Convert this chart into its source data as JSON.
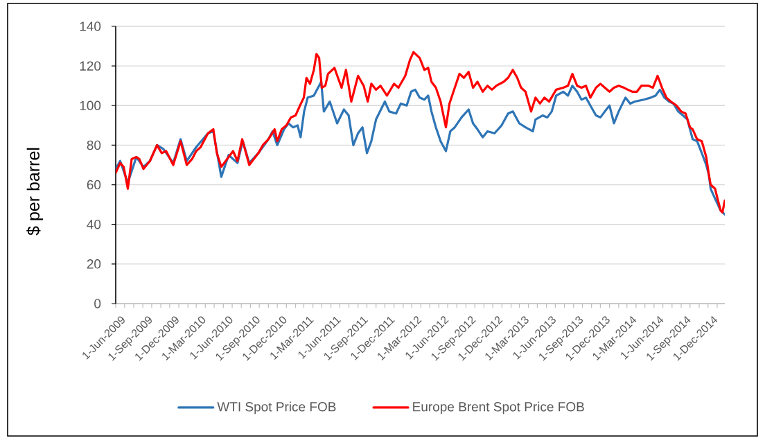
{
  "chart_data": {
    "type": "line",
    "ylabel": "$ per barrel",
    "xlim": [
      "2009-06-01",
      "2015-01-27"
    ],
    "ylim": [
      0,
      140
    ],
    "yticks": [
      0,
      20,
      40,
      60,
      80,
      100,
      120,
      140
    ],
    "xticks": [
      {
        "value": "2009-06-01",
        "label": "1-Jun-2009"
      },
      {
        "value": "2009-07-01",
        "label": null
      },
      {
        "value": "2009-08-01",
        "label": null
      },
      {
        "value": "2009-09-01",
        "label": "1-Sep-2009"
      },
      {
        "value": "2009-10-01",
        "label": null
      },
      {
        "value": "2009-11-01",
        "label": null
      },
      {
        "value": "2009-12-01",
        "label": "1-Dec-2009"
      },
      {
        "value": "2010-01-01",
        "label": null
      },
      {
        "value": "2010-02-01",
        "label": null
      },
      {
        "value": "2010-03-01",
        "label": "1-Mar-2010"
      },
      {
        "value": "2010-04-01",
        "label": null
      },
      {
        "value": "2010-05-01",
        "label": null
      },
      {
        "value": "2010-06-01",
        "label": "1-Jun-2010"
      },
      {
        "value": "2010-07-01",
        "label": null
      },
      {
        "value": "2010-08-01",
        "label": null
      },
      {
        "value": "2010-09-01",
        "label": "1-Sep-2010"
      },
      {
        "value": "2010-10-01",
        "label": null
      },
      {
        "value": "2010-11-01",
        "label": null
      },
      {
        "value": "2010-12-01",
        "label": "1-Dec-2010"
      },
      {
        "value": "2011-01-01",
        "label": null
      },
      {
        "value": "2011-02-01",
        "label": null
      },
      {
        "value": "2011-03-01",
        "label": "1-Mar-2011"
      },
      {
        "value": "2011-04-01",
        "label": null
      },
      {
        "value": "2011-05-01",
        "label": null
      },
      {
        "value": "2011-06-01",
        "label": "1-Jun-2011"
      },
      {
        "value": "2011-07-01",
        "label": null
      },
      {
        "value": "2011-08-01",
        "label": null
      },
      {
        "value": "2011-09-01",
        "label": "1-Sep-2011"
      },
      {
        "value": "2011-10-01",
        "label": null
      },
      {
        "value": "2011-11-01",
        "label": null
      },
      {
        "value": "2011-12-01",
        "label": "1-Dec-2011"
      },
      {
        "value": "2012-01-01",
        "label": null
      },
      {
        "value": "2012-02-01",
        "label": null
      },
      {
        "value": "2012-03-01",
        "label": "1-Mar-2012"
      },
      {
        "value": "2012-04-01",
        "label": null
      },
      {
        "value": "2012-05-01",
        "label": null
      },
      {
        "value": "2012-06-01",
        "label": "1-Jun-2012"
      },
      {
        "value": "2012-07-01",
        "label": null
      },
      {
        "value": "2012-08-01",
        "label": null
      },
      {
        "value": "2012-09-01",
        "label": "1-Sep-2012"
      },
      {
        "value": "2012-10-01",
        "label": null
      },
      {
        "value": "2012-11-01",
        "label": null
      },
      {
        "value": "2012-12-01",
        "label": "1-Dec-2012"
      },
      {
        "value": "2013-01-01",
        "label": null
      },
      {
        "value": "2013-02-01",
        "label": null
      },
      {
        "value": "2013-03-01",
        "label": "1-Mar-2013"
      },
      {
        "value": "2013-04-01",
        "label": null
      },
      {
        "value": "2013-05-01",
        "label": null
      },
      {
        "value": "2013-06-01",
        "label": "1-Jun-2013"
      },
      {
        "value": "2013-07-01",
        "label": null
      },
      {
        "value": "2013-08-01",
        "label": null
      },
      {
        "value": "2013-09-01",
        "label": "1-Sep-2013"
      },
      {
        "value": "2013-10-01",
        "label": null
      },
      {
        "value": "2013-11-01",
        "label": null
      },
      {
        "value": "2013-12-01",
        "label": "1-Dec-2013"
      },
      {
        "value": "2014-01-01",
        "label": null
      },
      {
        "value": "2014-02-01",
        "label": null
      },
      {
        "value": "2014-03-01",
        "label": "1-Mar-2014"
      },
      {
        "value": "2014-04-01",
        "label": null
      },
      {
        "value": "2014-05-01",
        "label": null
      },
      {
        "value": "2014-06-01",
        "label": "1-Jun-2014"
      },
      {
        "value": "2014-07-01",
        "label": null
      },
      {
        "value": "2014-08-01",
        "label": null
      },
      {
        "value": "2014-09-01",
        "label": "1-Sep-2014"
      },
      {
        "value": "2014-10-01",
        "label": null
      },
      {
        "value": "2014-11-01",
        "label": null
      },
      {
        "value": "2014-12-01",
        "label": "1-Dec-2014"
      },
      {
        "value": "2015-01-01",
        "label": null
      }
    ],
    "grid": "y",
    "legend": "bottom",
    "series": [
      {
        "name": "WTI Spot Price FOB",
        "color": "#2e75b6",
        "x": [
          "2009-06-01",
          "2009-06-16",
          "2009-07-12",
          "2009-08-10",
          "2009-09-03",
          "2009-09-25",
          "2009-10-19",
          "2009-11-10",
          "2009-12-13",
          "2010-01-07",
          "2010-01-28",
          "2010-03-01",
          "2010-04-10",
          "2010-04-28",
          "2010-05-25",
          "2010-06-19",
          "2010-07-19",
          "2010-08-06",
          "2010-08-28",
          "2010-09-28",
          "2010-11-01",
          "2010-11-15",
          "2010-12-01",
          "2010-12-24",
          "2011-01-08",
          "2011-01-24",
          "2011-02-08",
          "2011-02-18",
          "2011-03-02",
          "2011-03-14",
          "2011-04-04",
          "2011-04-29",
          "2011-05-08",
          "2011-05-28",
          "2011-06-22",
          "2011-07-15",
          "2011-07-31",
          "2011-08-16",
          "2011-09-01",
          "2011-09-16",
          "2011-10-01",
          "2011-10-16",
          "2011-11-01",
          "2011-12-01",
          "2011-12-16",
          "2012-01-08",
          "2012-01-24",
          "2012-02-13",
          "2012-02-28",
          "2012-03-13",
          "2012-03-28",
          "2012-04-13",
          "2012-04-26",
          "2012-05-07",
          "2012-05-22",
          "2012-06-07",
          "2012-06-25",
          "2012-07-10",
          "2012-07-25",
          "2012-08-17",
          "2012-09-10",
          "2012-09-25",
          "2012-10-10",
          "2012-10-28",
          "2012-11-13",
          "2012-12-07",
          "2012-12-31",
          "2013-01-22",
          "2013-02-07",
          "2013-03-01",
          "2013-03-22",
          "2013-04-16",
          "2013-04-25",
          "2013-05-19",
          "2013-06-04",
          "2013-06-19",
          "2013-07-04",
          "2013-07-28",
          "2013-08-13",
          "2013-08-28",
          "2013-09-13",
          "2013-09-28",
          "2013-10-13",
          "2013-10-28",
          "2013-11-16",
          "2013-12-01",
          "2013-12-16",
          "2014-01-01",
          "2014-01-16",
          "2014-02-01",
          "2014-02-24",
          "2014-03-12",
          "2014-03-28",
          "2014-04-27",
          "2014-05-21",
          "2014-06-06",
          "2014-06-21",
          "2014-07-06",
          "2014-07-22",
          "2014-08-06",
          "2014-08-22",
          "2014-09-07",
          "2014-09-22",
          "2014-10-10",
          "2014-10-25",
          "2014-11-10",
          "2014-11-25",
          "2014-12-04",
          "2014-12-10",
          "2014-12-25",
          "2015-01-13",
          "2015-01-27"
        ],
        "values": [
          68,
          72,
          61,
          74,
          69,
          72,
          80,
          78,
          71,
          83,
          72,
          79,
          86,
          87,
          64,
          75,
          71,
          82,
          71,
          76,
          83,
          87,
          80,
          88,
          91,
          89,
          90,
          84,
          97,
          104,
          105,
          112,
          97,
          102,
          91,
          98,
          95,
          80,
          86,
          89,
          76,
          82,
          93,
          102,
          97,
          96,
          101,
          100,
          107,
          108,
          104,
          103,
          105,
          97,
          89,
          82,
          77,
          87,
          89,
          94,
          98,
          91,
          88,
          84,
          87,
          86,
          90,
          96,
          97,
          91,
          89,
          87,
          93,
          95,
          94,
          97,
          105,
          107,
          105,
          110,
          107,
          103,
          104,
          100,
          95,
          94,
          97,
          100,
          91,
          97,
          104,
          101,
          102,
          103,
          104,
          105,
          108,
          104,
          102,
          101,
          97,
          95,
          93,
          83,
          82,
          76,
          70,
          65,
          58,
          53,
          47,
          45
        ]
      },
      {
        "name": "Europe Brent Spot Price FOB",
        "color": "#ff0000",
        "x": [
          "2009-06-01",
          "2009-06-16",
          "2009-06-28",
          "2009-07-12",
          "2009-07-25",
          "2009-08-10",
          "2009-08-20",
          "2009-09-03",
          "2009-09-25",
          "2009-10-19",
          "2009-11-04",
          "2009-11-19",
          "2009-12-13",
          "2010-01-07",
          "2010-01-28",
          "2010-02-15",
          "2010-03-01",
          "2010-03-16",
          "2010-04-10",
          "2010-04-28",
          "2010-05-10",
          "2010-05-25",
          "2010-06-19",
          "2010-07-04",
          "2010-07-19",
          "2010-08-04",
          "2010-08-28",
          "2010-09-28",
          "2010-10-13",
          "2010-11-01",
          "2010-11-22",
          "2010-12-01",
          "2010-12-16",
          "2011-01-01",
          "2011-01-16",
          "2011-02-01",
          "2011-02-16",
          "2011-03-01",
          "2011-03-10",
          "2011-03-22",
          "2011-04-04",
          "2011-04-13",
          "2011-04-22",
          "2011-05-01",
          "2011-05-13",
          "2011-05-22",
          "2011-06-13",
          "2011-07-07",
          "2011-07-22",
          "2011-08-09",
          "2011-09-01",
          "2011-09-20",
          "2011-10-04",
          "2011-10-16",
          "2011-11-01",
          "2011-11-16",
          "2011-12-08",
          "2012-01-01",
          "2012-01-16",
          "2012-02-08",
          "2012-02-24",
          "2012-03-07",
          "2012-03-28",
          "2012-04-13",
          "2012-04-26",
          "2012-05-07",
          "2012-05-22",
          "2012-06-07",
          "2012-06-25",
          "2012-07-07",
          "2012-07-16",
          "2012-08-10",
          "2012-08-25",
          "2012-09-10",
          "2012-09-25",
          "2012-10-10",
          "2012-10-28",
          "2012-11-13",
          "2012-11-28",
          "2012-12-13",
          "2013-01-07",
          "2013-01-22",
          "2013-02-07",
          "2013-02-22",
          "2013-03-07",
          "2013-03-22",
          "2013-04-10",
          "2013-04-25",
          "2013-05-10",
          "2013-05-25",
          "2013-06-10",
          "2013-07-04",
          "2013-07-28",
          "2013-08-13",
          "2013-08-28",
          "2013-09-13",
          "2013-09-28",
          "2013-10-13",
          "2013-10-28",
          "2013-11-16",
          "2013-12-01",
          "2013-12-16",
          "2014-01-01",
          "2014-01-16",
          "2014-02-01",
          "2014-02-19",
          "2014-03-04",
          "2014-03-19",
          "2014-04-04",
          "2014-04-19",
          "2014-05-13",
          "2014-05-28",
          "2014-06-13",
          "2014-06-28",
          "2014-07-13",
          "2014-07-28",
          "2014-08-16",
          "2014-09-01",
          "2014-09-16",
          "2014-10-01",
          "2014-10-10",
          "2014-10-25",
          "2014-11-10",
          "2014-11-25",
          "2014-12-04",
          "2014-12-10",
          "2014-12-25",
          "2015-01-04",
          "2015-01-13",
          "2015-01-19",
          "2015-01-27"
        ],
        "values": [
          66,
          71,
          69,
          58,
          73,
          74,
          73,
          68,
          72,
          80,
          76,
          77,
          70,
          82,
          70,
          73,
          77,
          79,
          86,
          88,
          76,
          69,
          74,
          77,
          72,
          83,
          70,
          76,
          80,
          83,
          88,
          82,
          88,
          90,
          94,
          95,
          100,
          104,
          114,
          111,
          118,
          126,
          124,
          109,
          110,
          116,
          119,
          109,
          118,
          102,
          115,
          110,
          102,
          111,
          108,
          110,
          105,
          111,
          109,
          115,
          123,
          127,
          124,
          118,
          119,
          112,
          109,
          102,
          89,
          101,
          105,
          116,
          114,
          117,
          109,
          112,
          107,
          110,
          108,
          110,
          112,
          114,
          118,
          114,
          109,
          107,
          97,
          104,
          101,
          104,
          102,
          108,
          109,
          110,
          116,
          110,
          109,
          110,
          104,
          109,
          111,
          109,
          107,
          109,
          110,
          109,
          108,
          107,
          107,
          110,
          110,
          109,
          115,
          109,
          104,
          102,
          100,
          97,
          96,
          89,
          88,
          83,
          82,
          74,
          65,
          60,
          58,
          52,
          47,
          46,
          52
        ]
      }
    ]
  }
}
